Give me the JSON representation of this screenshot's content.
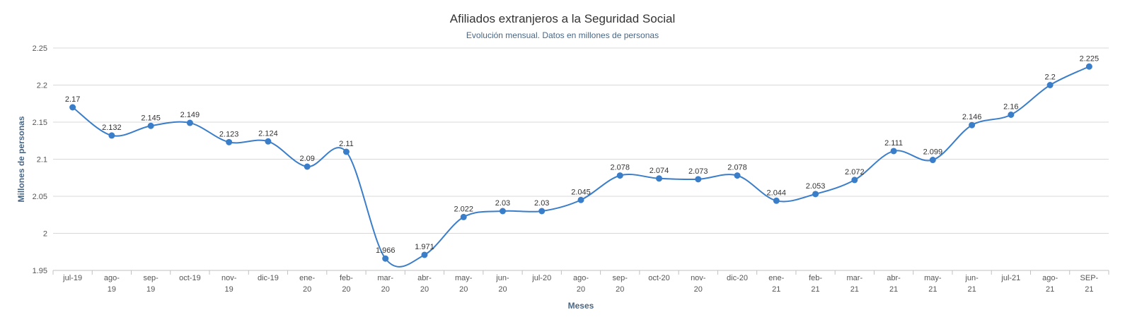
{
  "chart_data": {
    "type": "line",
    "title": "Afiliados extranjeros a la Seguridad Social",
    "subtitle": "Evolución mensual. Datos en millones de personas",
    "xlabel": "Meses",
    "ylabel": "Millones de personas",
    "ylim": [
      1.95,
      2.25
    ],
    "yticks": [
      "1.95",
      "2",
      "2.05",
      "2.1",
      "2.15",
      "2.2",
      "2.25"
    ],
    "grid": true,
    "legend": "none",
    "line_color": "#3a7dc9",
    "categories": [
      "jul-19",
      "ago-19",
      "sep-19",
      "oct-19",
      "nov-19",
      "dic-19",
      "ene-20",
      "feb-20",
      "mar-20",
      "abr-20",
      "may-20",
      "jun-20",
      "jul-20",
      "ago-20",
      "sep-20",
      "oct-20",
      "nov-20",
      "dic-20",
      "ene-21",
      "feb-21",
      "mar-21",
      "abr-21",
      "may-21",
      "jun-21",
      "jul-21",
      "ago-21",
      "SEP-21"
    ],
    "category_lines": [
      [
        "jul-19"
      ],
      [
        "ago-",
        "19"
      ],
      [
        "sep-",
        "19"
      ],
      [
        "oct-19"
      ],
      [
        "nov-",
        "19"
      ],
      [
        "dic-19"
      ],
      [
        "ene-",
        "20"
      ],
      [
        "feb-",
        "20"
      ],
      [
        "mar-",
        "20"
      ],
      [
        "abr-",
        "20"
      ],
      [
        "may-",
        "20"
      ],
      [
        "jun-",
        "20"
      ],
      [
        "jul-20"
      ],
      [
        "ago-",
        "20"
      ],
      [
        "sep-",
        "20"
      ],
      [
        "oct-20"
      ],
      [
        "nov-",
        "20"
      ],
      [
        "dic-20"
      ],
      [
        "ene-",
        "21"
      ],
      [
        "feb-",
        "21"
      ],
      [
        "mar-",
        "21"
      ],
      [
        "abr-",
        "21"
      ],
      [
        "may-",
        "21"
      ],
      [
        "jun-",
        "21"
      ],
      [
        "jul-21"
      ],
      [
        "ago-",
        "21"
      ],
      [
        "SEP-",
        "21"
      ]
    ],
    "values": [
      2.17,
      2.132,
      2.145,
      2.149,
      2.123,
      2.124,
      2.09,
      2.11,
      1.966,
      1.971,
      2.022,
      2.03,
      2.03,
      2.045,
      2.078,
      2.074,
      2.073,
      2.078,
      2.044,
      2.053,
      2.072,
      2.111,
      2.099,
      2.146,
      2.16,
      2.2,
      2.225
    ],
    "value_labels": [
      "2.17",
      "2.132",
      "2.145",
      "2.149",
      "2.123",
      "2.124",
      "2.09",
      "2.11",
      "1.966",
      "1.971",
      "2.022",
      "2.03",
      "2.03",
      "2.045",
      "2.078",
      "2.074",
      "2.073",
      "2.078",
      "2.044",
      "2.053",
      "2.072",
      "2.111",
      "2.099",
      "2.146",
      "2.16",
      "2.2",
      "2.225"
    ]
  }
}
